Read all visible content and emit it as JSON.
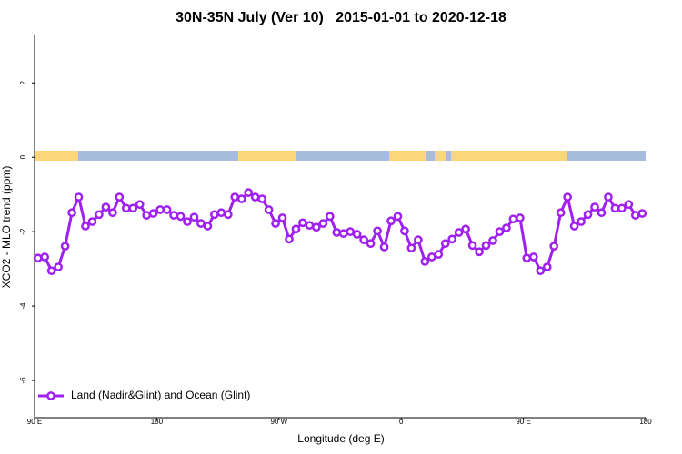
{
  "chart_data": {
    "type": "line",
    "title": "30N-35N July (Ver 10)   2015-01-01 to 2020-12-18",
    "xlabel": "Longitude (deg E)",
    "ylabel": "XCO2 - MLO trend (ppm)",
    "x": [
      92.5,
      97.5,
      102.5,
      107.5,
      112.5,
      117.5,
      122.5,
      127.5,
      132.5,
      137.5,
      142.5,
      147.5,
      152.5,
      157.5,
      162.5,
      167.5,
      172.5,
      177.5,
      182.5,
      187.5,
      192.5,
      197.5,
      202.5,
      207.5,
      212.5,
      217.5,
      222.5,
      227.5,
      232.5,
      237.5,
      242.5,
      247.5,
      252.5,
      257.5,
      262.5,
      267.5,
      272.5,
      277.5,
      282.5,
      287.5,
      292.5,
      297.5,
      302.5,
      307.5,
      312.5,
      317.5,
      322.5,
      327.5,
      332.5,
      337.5,
      342.5,
      347.5,
      352.5,
      357.5,
      362.5,
      367.5,
      372.5,
      377.5,
      382.5,
      387.5,
      392.5,
      397.5,
      402.5,
      407.5,
      412.5,
      417.5,
      422.5,
      427.5,
      432.5,
      437.5,
      442.5,
      447.5,
      452.5,
      457.5,
      462.5,
      467.5,
      472.5,
      477.5,
      482.5,
      487.5,
      492.5,
      497.5,
      502.5,
      507.5,
      512.5,
      517.5,
      522.5,
      527.5,
      532.5,
      537.5
    ],
    "series": [
      {
        "name": "Land (Nadir&Glint) and Ocean (Glint)",
        "color": "#a020f0",
        "values": [
          -2.71,
          -2.68,
          -3.05,
          -2.95,
          -2.39,
          -1.49,
          -1.07,
          -1.85,
          -1.73,
          -1.54,
          -1.34,
          -1.49,
          -1.07,
          -1.37,
          -1.37,
          -1.27,
          -1.56,
          -1.51,
          -1.41,
          -1.41,
          -1.56,
          -1.59,
          -1.73,
          -1.61,
          -1.78,
          -1.85,
          -1.54,
          -1.49,
          -1.54,
          -1.07,
          -1.12,
          -0.95,
          -1.07,
          -1.12,
          -1.41,
          -1.78,
          -1.63,
          -2.2,
          -1.93,
          -1.76,
          -1.83,
          -1.88,
          -1.78,
          -1.59,
          -2.02,
          -2.05,
          -2.0,
          -2.07,
          -2.22,
          -2.32,
          -1.98,
          -2.41,
          -1.71,
          -1.59,
          -1.98,
          -2.44,
          -2.22,
          -2.8,
          -2.68,
          -2.61,
          -2.32,
          -2.2,
          -2.02,
          -1.93,
          -2.37,
          -2.54,
          -2.37,
          -2.24,
          -2.0,
          -1.9,
          -1.66,
          -1.63,
          -2.71,
          -2.68,
          -3.05,
          -2.95,
          -2.39,
          -1.49,
          -1.07,
          -1.85,
          -1.73,
          -1.54,
          -1.34,
          -1.49,
          -1.07,
          -1.37,
          -1.37,
          -1.27,
          -1.56,
          -1.51
        ]
      }
    ],
    "xlim": [
      90,
      540
    ],
    "xticks": [
      {
        "value": 90,
        "label": "90 E"
      },
      180,
      {
        "value": 270,
        "label": "90 W"
      },
      {
        "value": 360,
        "label": "0"
      },
      {
        "value": 450,
        "label": "90 E"
      },
      {
        "value": 540,
        "label": "180"
      }
    ],
    "ylim": [
      -7,
      3.3
    ],
    "yticks": [
      2,
      0,
      -2,
      -4,
      -6
    ],
    "legend": "bottom-left"
  }
}
